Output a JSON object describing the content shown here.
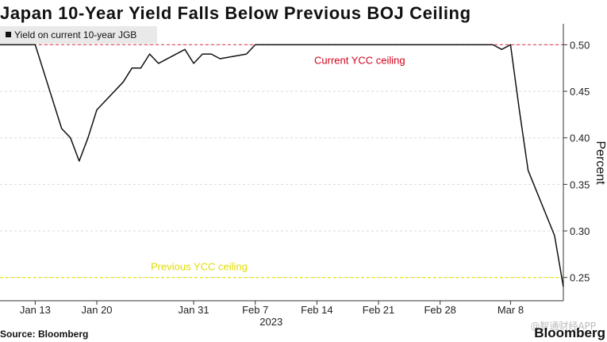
{
  "title": "Japan 10-Year Yield Falls Below Previous BOJ Ceiling",
  "source": "Source: Bloomberg",
  "brand": "Bloomberg",
  "watermark": "@智通财经APP",
  "chart_data": {
    "type": "line",
    "ylabel": "Percent",
    "ylim": [
      0.225,
      0.5225
    ],
    "yticks": [
      0.25,
      0.3,
      0.35,
      0.4,
      0.45,
      0.5
    ],
    "ytick_labels": [
      "0.25",
      "0.30",
      "0.35",
      "0.40",
      "0.45",
      "0.50"
    ],
    "xlim": [
      "2023-01-09",
      "2023-03-14"
    ],
    "xticks": [
      {
        "date": "2023-01-13",
        "label": "Jan 13"
      },
      {
        "date": "2023-01-20",
        "label": "Jan 20"
      },
      {
        "date": "2023-01-31",
        "label": "Jan 31"
      },
      {
        "date": "2023-02-07",
        "label": "Feb 7"
      },
      {
        "date": "2023-02-14",
        "label": "Feb 14"
      },
      {
        "date": "2023-02-21",
        "label": "Feb 21"
      },
      {
        "date": "2023-02-28",
        "label": "Feb 28"
      },
      {
        "date": "2023-03-08",
        "label": "Mar 8"
      }
    ],
    "year_label": "2023",
    "legend_position": "top-left",
    "series": [
      {
        "name": "Yield on current 10-year JGB",
        "color": "#111111",
        "x": [
          "2023-01-09",
          "2023-01-10",
          "2023-01-11",
          "2023-01-12",
          "2023-01-13",
          "2023-01-16",
          "2023-01-17",
          "2023-01-18",
          "2023-01-19",
          "2023-01-20",
          "2023-01-23",
          "2023-01-24",
          "2023-01-25",
          "2023-01-26",
          "2023-01-27",
          "2023-01-30",
          "2023-01-31",
          "2023-02-01",
          "2023-02-02",
          "2023-02-03",
          "2023-02-06",
          "2023-02-07",
          "2023-02-08",
          "2023-02-09",
          "2023-02-10",
          "2023-02-13",
          "2023-02-14",
          "2023-02-15",
          "2023-02-16",
          "2023-02-17",
          "2023-02-20",
          "2023-02-21",
          "2023-02-22",
          "2023-02-24",
          "2023-02-27",
          "2023-02-28",
          "2023-03-01",
          "2023-03-02",
          "2023-03-03",
          "2023-03-06",
          "2023-03-07",
          "2023-03-08",
          "2023-03-09",
          "2023-03-10",
          "2023-03-13",
          "2023-03-14"
        ],
        "values": [
          0.5,
          0.5,
          0.5,
          0.5,
          0.5,
          0.41,
          0.4,
          0.375,
          0.4,
          0.43,
          0.46,
          0.475,
          0.475,
          0.49,
          0.48,
          0.495,
          0.48,
          0.49,
          0.49,
          0.485,
          0.49,
          0.5,
          0.5,
          0.5,
          0.5,
          0.5,
          0.5,
          0.5,
          0.5,
          0.5,
          0.5,
          0.5,
          0.5,
          0.5,
          0.5,
          0.5,
          0.5,
          0.5,
          0.5,
          0.5,
          0.495,
          0.5,
          0.43,
          0.365,
          0.295,
          0.24
        ]
      }
    ],
    "reference_lines": [
      {
        "value": 0.5,
        "label": "Current YCC ceiling",
        "color": "#e05a6a",
        "label_color": "#d0021b"
      },
      {
        "value": 0.25,
        "label": "Previous YCC ceiling",
        "color": "#e8e600",
        "label_color": "#e0dc00"
      }
    ],
    "grid": "horizontal dashed"
  }
}
